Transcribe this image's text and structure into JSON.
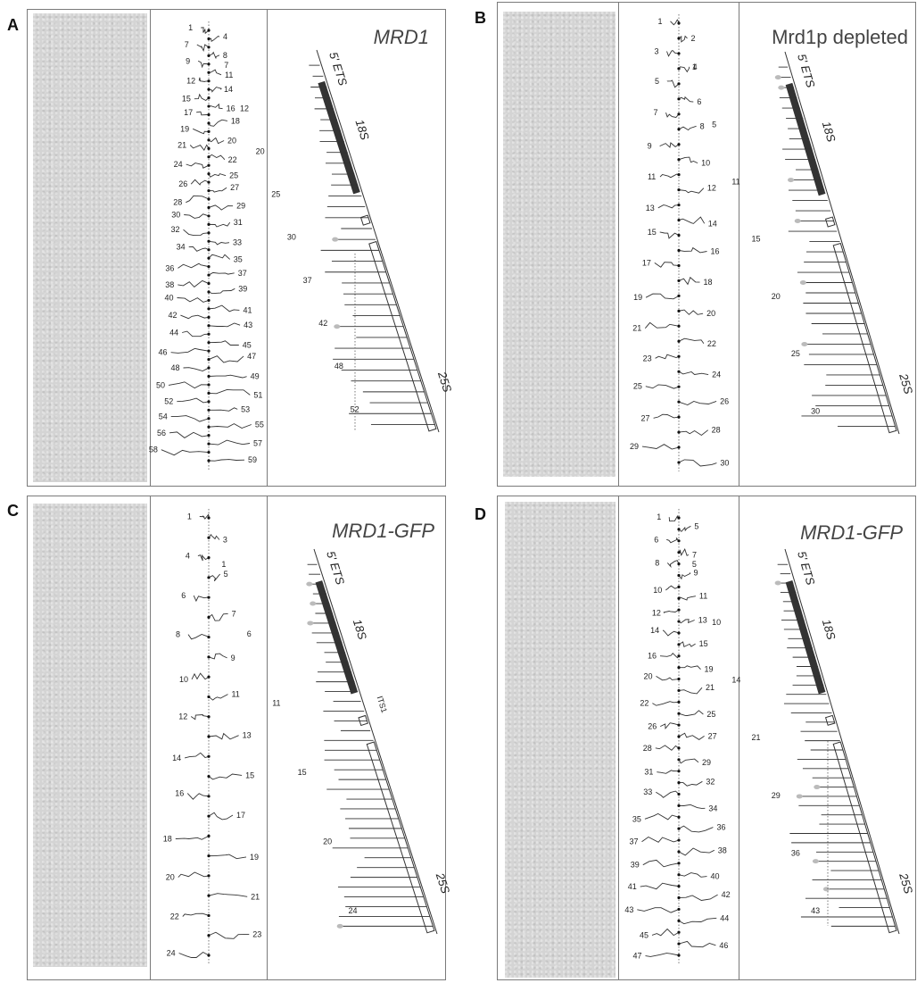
{
  "panels": [
    {
      "letter": "A",
      "title": "MRD1",
      "title_italic": true,
      "rrna_labels": {
        "ets": "5' ETS",
        "s18": "18S",
        "s25": "25S"
      },
      "trace_numbers": [
        "1",
        "4",
        "7",
        "8",
        "9",
        "11",
        "12",
        "14",
        "15",
        "16",
        "17",
        "18",
        "19",
        "20",
        "21",
        "22",
        "24",
        "25",
        "26",
        "27",
        "28",
        "29",
        "30",
        "31",
        "32",
        "33",
        "34",
        "35",
        "36",
        "37",
        "38",
        "39",
        "40",
        "41",
        "42",
        "43",
        "44",
        "45",
        "46",
        "47",
        "48",
        "49",
        "50",
        "51",
        "52",
        "53",
        "54",
        "55",
        "56",
        "57",
        "58",
        "59"
      ],
      "gene_numbers": [
        "7",
        "12",
        "20",
        "25",
        "30",
        "37",
        "42",
        "48",
        "52"
      ]
    },
    {
      "letter": "B",
      "title": "Mrd1p depleted",
      "title_italic": false,
      "rrna_labels": {
        "ets": "5' ETS",
        "s18": "18S",
        "s25": "25S"
      },
      "trace_numbers": [
        "1",
        "2",
        "3",
        "4",
        "5",
        "6",
        "7",
        "8",
        "9",
        "10",
        "11",
        "12",
        "13",
        "14",
        "15",
        "16",
        "17",
        "18",
        "19",
        "20",
        "21",
        "22",
        "23",
        "24",
        "25",
        "26",
        "27",
        "28",
        "29",
        "30"
      ],
      "gene_numbers": [
        "1",
        "5",
        "11",
        "15",
        "20",
        "25",
        "30"
      ]
    },
    {
      "letter": "C",
      "title": "MRD1-GFP",
      "title_italic": true,
      "rrna_labels": {
        "ets": "5' ETS",
        "s18": "18S",
        "s25": "25S",
        "its1": "ITS1"
      },
      "trace_numbers": [
        "1",
        "3",
        "4",
        "5",
        "6",
        "7",
        "8",
        "9",
        "10",
        "11",
        "12",
        "13",
        "14",
        "15",
        "16",
        "17",
        "18",
        "19",
        "20",
        "21",
        "22",
        "23",
        "24"
      ],
      "gene_numbers": [
        "1",
        "6",
        "11",
        "15",
        "20",
        "24"
      ]
    },
    {
      "letter": "D",
      "title": "MRD1-GFP",
      "title_italic": true,
      "rrna_labels": {
        "ets": "5' ETS",
        "s18": "18S",
        "s25": "25S"
      },
      "trace_numbers": [
        "1",
        "5",
        "6",
        "7",
        "8",
        "9",
        "10",
        "11",
        "12",
        "13",
        "14",
        "15",
        "16",
        "19",
        "20",
        "21",
        "22",
        "25",
        "26",
        "27",
        "28",
        "29",
        "31",
        "32",
        "33",
        "34",
        "35",
        "36",
        "37",
        "38",
        "39",
        "40",
        "41",
        "42",
        "43",
        "44",
        "45",
        "46",
        "47"
      ],
      "gene_numbers": [
        "5",
        "10",
        "14",
        "21",
        "29",
        "36",
        "43"
      ]
    }
  ]
}
